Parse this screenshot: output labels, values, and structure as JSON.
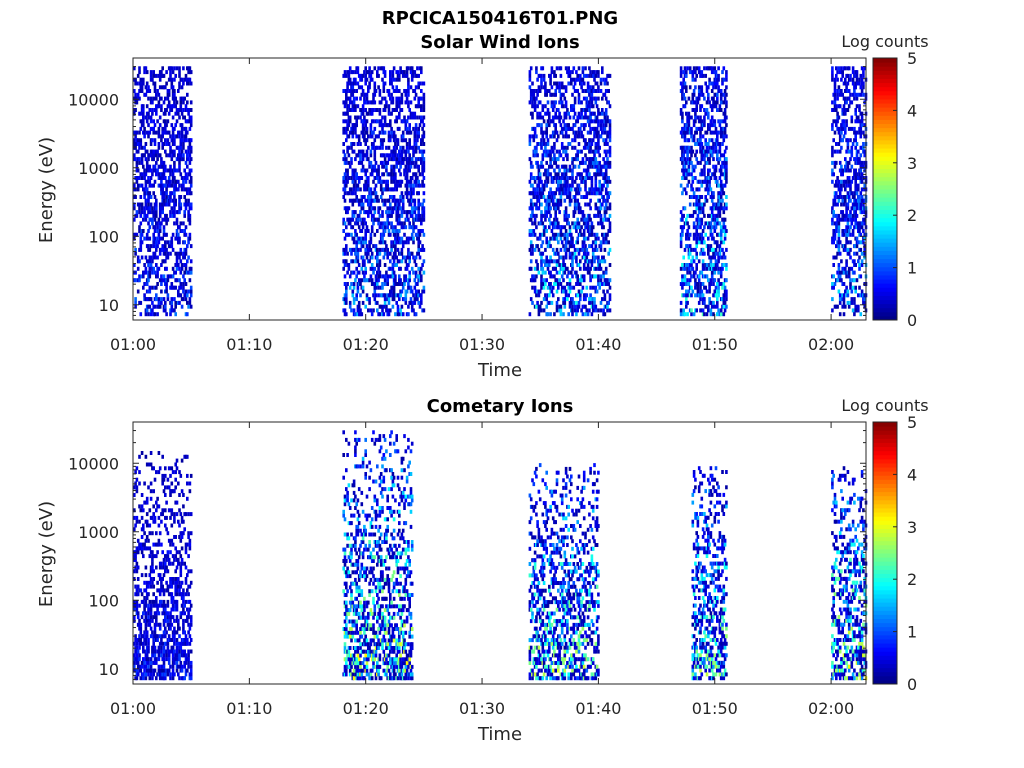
{
  "figure_title": "RPCICA150416T01.PNG",
  "chart_data": [
    {
      "type": "heatmap",
      "title": "Solar Wind Ions",
      "xlabel": "Time",
      "ylabel": "Energy (eV)",
      "x_range": [
        "01:00",
        "02:03"
      ],
      "x_ticks": [
        "01:00",
        "01:10",
        "01:20",
        "01:30",
        "01:40",
        "01:50",
        "02:00"
      ],
      "y_scale": "log",
      "y_range": [
        6,
        40000
      ],
      "y_ticks": [
        10,
        100,
        1000,
        10000
      ],
      "y_tick_labels": [
        "10",
        "100",
        "1000",
        "10000"
      ],
      "colorbar": {
        "label": "Log counts",
        "range": [
          0,
          5
        ],
        "ticks": [
          "0",
          "1",
          "2",
          "3",
          "4",
          "5"
        ],
        "colormap": "jet"
      },
      "bursts": [
        {
          "start": "01:00",
          "end": "01:05",
          "emin": 6,
          "emax": 30000,
          "core_log_counts": 1.0
        },
        {
          "start": "01:18",
          "end": "01:25",
          "emin": 6,
          "emax": 30000,
          "core_log_counts": 1.3
        },
        {
          "start": "01:34",
          "end": "01:41",
          "emin": 6,
          "emax": 30000,
          "core_log_counts": 1.6
        },
        {
          "start": "01:47",
          "end": "01:51",
          "emin": 6,
          "emax": 30000,
          "core_log_counts": 1.8
        },
        {
          "start": "02:00",
          "end": "02:03",
          "emin": 6,
          "emax": 30000,
          "core_log_counts": 1.5
        }
      ]
    },
    {
      "type": "heatmap",
      "title": "Cometary Ions",
      "xlabel": "Time",
      "ylabel": "Energy (eV)",
      "x_range": [
        "01:00",
        "02:03"
      ],
      "x_ticks": [
        "01:00",
        "01:10",
        "01:20",
        "01:30",
        "01:40",
        "01:50",
        "02:00"
      ],
      "y_scale": "log",
      "y_range": [
        6,
        40000
      ],
      "y_ticks": [
        10,
        100,
        1000,
        10000
      ],
      "y_tick_labels": [
        "10",
        "100",
        "1000",
        "10000"
      ],
      "colorbar": {
        "label": "Log counts",
        "range": [
          0,
          5
        ],
        "ticks": [
          "0",
          "1",
          "2",
          "3",
          "4",
          "5"
        ],
        "colormap": "jet"
      },
      "bursts": [
        {
          "start": "01:00",
          "end": "01:05",
          "emin": 6,
          "emax": 15000,
          "core_log_counts": 0.8
        },
        {
          "start": "01:18",
          "end": "01:24",
          "emin": 6,
          "emax": 30000,
          "core_log_counts": 2.6
        },
        {
          "start": "01:34",
          "end": "01:40",
          "emin": 6,
          "emax": 10000,
          "core_log_counts": 2.4
        },
        {
          "start": "01:48",
          "end": "01:51",
          "emin": 6,
          "emax": 9000,
          "core_log_counts": 2.3
        },
        {
          "start": "02:00",
          "end": "02:03",
          "emin": 6,
          "emax": 9000,
          "core_log_counts": 2.6
        }
      ]
    }
  ]
}
